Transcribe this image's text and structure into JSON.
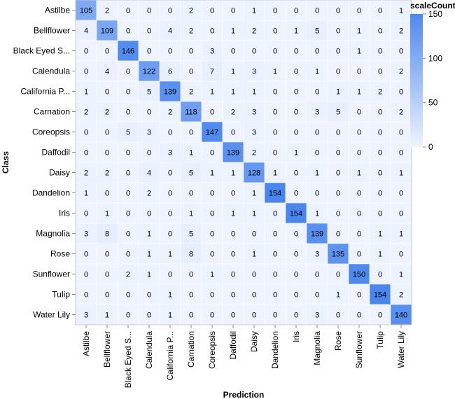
{
  "chart_data": {
    "type": "heatmap",
    "x_title": "Prediction",
    "y_title": "Class",
    "x_categories": [
      "Astilbe",
      "Bellflower",
      "Black Eyed S...",
      "Calendula",
      "California P...",
      "Carnation",
      "Coreopsis",
      "Daffodil",
      "Daisy",
      "Dandelion",
      "Iris",
      "Magnolia",
      "Rose",
      "Sunflower",
      "Tulip",
      "Water Lily"
    ],
    "y_categories": [
      "Astilbe",
      "Bellflower",
      "Black Eyed S...",
      "Calendula",
      "California P...",
      "Carnation",
      "Coreopsis",
      "Daffodil",
      "Daisy",
      "Dandelion",
      "Iris",
      "Magnolia",
      "Rose",
      "Sunflower",
      "Tulip",
      "Water Lily"
    ],
    "values": [
      [
        105,
        2,
        0,
        0,
        0,
        2,
        0,
        0,
        1,
        0,
        0,
        0,
        0,
        0,
        0,
        1
      ],
      [
        4,
        109,
        0,
        0,
        4,
        2,
        0,
        1,
        2,
        0,
        1,
        5,
        0,
        1,
        0,
        2
      ],
      [
        0,
        0,
        146,
        0,
        0,
        0,
        3,
        0,
        0,
        0,
        0,
        0,
        0,
        1,
        0,
        0
      ],
      [
        0,
        4,
        0,
        122,
        6,
        0,
        7,
        1,
        3,
        1,
        0,
        1,
        0,
        0,
        0,
        2
      ],
      [
        1,
        0,
        0,
        5,
        139,
        2,
        1,
        1,
        1,
        0,
        0,
        0,
        1,
        1,
        2,
        0
      ],
      [
        2,
        2,
        0,
        0,
        2,
        118,
        0,
        2,
        3,
        0,
        0,
        3,
        5,
        0,
        0,
        2
      ],
      [
        0,
        0,
        5,
        3,
        0,
        0,
        147,
        0,
        3,
        0,
        0,
        0,
        0,
        0,
        0,
        0
      ],
      [
        0,
        0,
        0,
        0,
        3,
        1,
        0,
        139,
        2,
        0,
        1,
        0,
        0,
        0,
        0,
        0
      ],
      [
        2,
        2,
        0,
        4,
        0,
        5,
        1,
        1,
        128,
        1,
        0,
        1,
        0,
        1,
        0,
        1
      ],
      [
        1,
        0,
        0,
        2,
        0,
        0,
        0,
        0,
        1,
        154,
        0,
        0,
        0,
        0,
        0,
        0
      ],
      [
        0,
        1,
        0,
        0,
        0,
        1,
        0,
        1,
        1,
        0,
        154,
        1,
        0,
        0,
        0,
        0
      ],
      [
        3,
        8,
        0,
        1,
        0,
        5,
        0,
        0,
        0,
        0,
        0,
        139,
        0,
        0,
        1,
        1
      ],
      [
        0,
        0,
        0,
        1,
        1,
        8,
        0,
        0,
        1,
        0,
        0,
        3,
        135,
        0,
        1,
        0
      ],
      [
        0,
        0,
        2,
        1,
        0,
        0,
        1,
        0,
        0,
        0,
        0,
        0,
        0,
        150,
        0,
        1
      ],
      [
        0,
        0,
        0,
        0,
        1,
        0,
        0,
        0,
        0,
        0,
        0,
        0,
        1,
        0,
        154,
        2
      ],
      [
        3,
        1,
        0,
        0,
        1,
        0,
        0,
        0,
        0,
        0,
        0,
        3,
        0,
        0,
        0,
        140
      ]
    ],
    "color_range": [
      0,
      154
    ],
    "low_color": "#eef3ff",
    "high_color": "#4a86ee",
    "legend": {
      "title": "scaleCount",
      "ticks": [
        0,
        50,
        100,
        150
      ],
      "position": "top-right"
    }
  }
}
